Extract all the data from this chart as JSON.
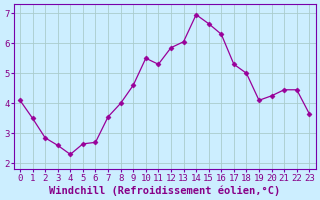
{
  "x": [
    0,
    1,
    2,
    3,
    4,
    5,
    6,
    7,
    8,
    9,
    10,
    11,
    12,
    13,
    14,
    15,
    16,
    17,
    18,
    19,
    20,
    21,
    22,
    23
  ],
  "y": [
    4.1,
    3.5,
    2.85,
    2.6,
    2.3,
    2.65,
    2.7,
    3.55,
    4.0,
    4.6,
    5.5,
    5.3,
    5.85,
    6.05,
    6.95,
    6.65,
    6.3,
    5.3,
    5.0,
    4.1,
    4.25,
    4.45,
    4.45,
    3.65
  ],
  "line_color": "#990099",
  "marker": "D",
  "marker_size": 2.5,
  "background_color": "#cceeff",
  "grid_color": "#aacccc",
  "xlabel": "Windchill (Refroidissement éolien,°C)",
  "xlabel_fontsize": 7.5,
  "ylim": [
    1.8,
    7.3
  ],
  "xlim": [
    -0.5,
    23.5
  ],
  "yticks": [
    2,
    3,
    4,
    5,
    6,
    7
  ],
  "xticks": [
    0,
    1,
    2,
    3,
    4,
    5,
    6,
    7,
    8,
    9,
    10,
    11,
    12,
    13,
    14,
    15,
    16,
    17,
    18,
    19,
    20,
    21,
    22,
    23
  ],
  "tick_fontsize": 6.5,
  "text_color": "#880088",
  "spine_color": "#7700aa",
  "fig_bg": "#cceeff"
}
